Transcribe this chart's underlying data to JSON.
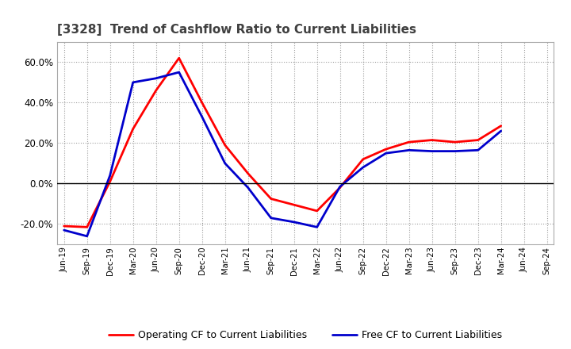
{
  "title": "[3328]  Trend of Cashflow Ratio to Current Liabilities",
  "x_labels": [
    "Jun-19",
    "Sep-19",
    "Dec-19",
    "Mar-20",
    "Jun-20",
    "Sep-20",
    "Dec-20",
    "Mar-21",
    "Jun-21",
    "Sep-21",
    "Dec-21",
    "Mar-22",
    "Jun-22",
    "Sep-22",
    "Dec-22",
    "Mar-23",
    "Jun-23",
    "Sep-23",
    "Dec-23",
    "Mar-24",
    "Jun-24",
    "Sep-24"
  ],
  "operating_cf": [
    -21.0,
    -21.5,
    1.0,
    27.0,
    46.0,
    62.0,
    40.0,
    19.0,
    5.0,
    -7.5,
    -10.5,
    -13.5,
    -2.0,
    12.0,
    17.0,
    20.5,
    21.5,
    20.5,
    21.5,
    28.5,
    null,
    null
  ],
  "free_cf": [
    -23.0,
    -26.0,
    4.0,
    50.0,
    52.0,
    55.0,
    33.0,
    10.0,
    -2.0,
    -17.0,
    -19.0,
    -21.5,
    -1.5,
    8.0,
    15.0,
    16.5,
    16.0,
    16.0,
    16.5,
    26.0,
    null,
    null
  ],
  "operating_color": "#ff0000",
  "free_color": "#0000cc",
  "ylim": [
    -30,
    70
  ],
  "yticks": [
    -20,
    0,
    20,
    40,
    60
  ],
  "background_color": "#ffffff",
  "grid_color": "#888888",
  "line_width": 2.0,
  "title_color": "#404040",
  "legend_label_op": "Operating CF to Current Liabilities",
  "legend_label_fr": "Free CF to Current Liabilities"
}
